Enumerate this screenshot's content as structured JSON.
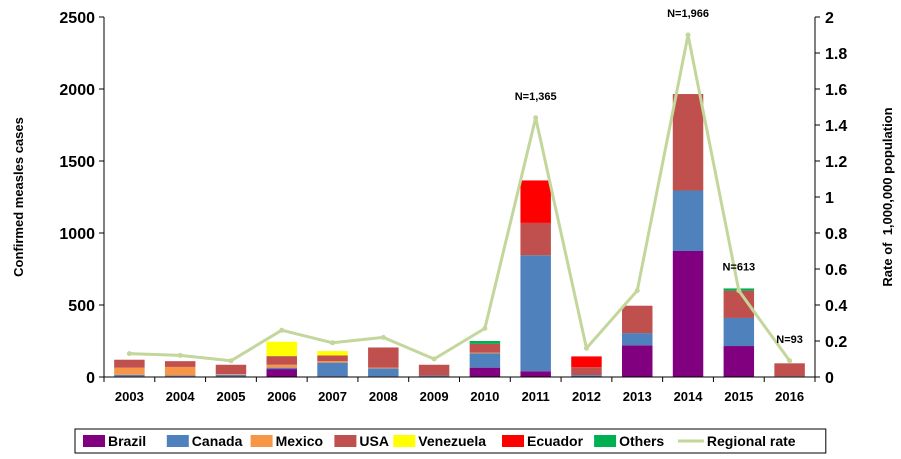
{
  "chart_data": {
    "type": "bar",
    "stacked": true,
    "categories": [
      "2003",
      "2004",
      "2005",
      "2006",
      "2007",
      "2008",
      "2009",
      "2010",
      "2011",
      "2012",
      "2013",
      "2014",
      "2015",
      "2016"
    ],
    "series": [
      {
        "name": "Brazil",
        "color": "#800080",
        "values": [
          5,
          5,
          5,
          55,
          5,
          5,
          5,
          65,
          40,
          3,
          220,
          875,
          215,
          0
        ]
      },
      {
        "name": "Canada",
        "color": "#4f81bd",
        "values": [
          10,
          5,
          10,
          10,
          95,
          55,
          5,
          100,
          805,
          10,
          85,
          420,
          195,
          5
        ]
      },
      {
        "name": "Mexico",
        "color": "#f79646",
        "values": [
          50,
          60,
          5,
          20,
          10,
          5,
          0,
          5,
          0,
          0,
          0,
          0,
          0,
          0
        ]
      },
      {
        "name": "USA",
        "color": "#c0504d",
        "values": [
          55,
          40,
          65,
          60,
          40,
          140,
          75,
          60,
          225,
          55,
          190,
          670,
          190,
          90
        ]
      },
      {
        "name": "Venezuela",
        "color": "#ffff00",
        "values": [
          0,
          0,
          0,
          100,
          30,
          0,
          0,
          0,
          0,
          0,
          0,
          0,
          0,
          0
        ]
      },
      {
        "name": "Ecuador",
        "color": "#ff0000",
        "values": [
          0,
          0,
          0,
          0,
          0,
          0,
          0,
          0,
          295,
          75,
          0,
          0,
          0,
          0
        ]
      },
      {
        "name": "Others",
        "color": "#00b050",
        "values": [
          0,
          0,
          0,
          0,
          0,
          0,
          0,
          20,
          0,
          0,
          0,
          0,
          15,
          0
        ]
      }
    ],
    "line_series": {
      "name": "Regional rate",
      "color": "#c3d69b",
      "values": [
        0.13,
        0.12,
        0.09,
        0.26,
        0.19,
        0.22,
        0.1,
        0.27,
        1.44,
        0.16,
        0.48,
        1.9,
        0.48,
        0.09
      ]
    },
    "ylabel": "Confirmed measles cases",
    "y2label": "Rate of  1,000,000 population",
    "ylim": [
      0,
      2500
    ],
    "y2lim": [
      0,
      2
    ],
    "yticks": [
      "0",
      "500",
      "1000",
      "1500",
      "2000",
      "2500"
    ],
    "y2ticks": [
      "0",
      "0.2",
      "0.4",
      "0.6",
      "0.8",
      "1",
      "1.2",
      "1.4",
      "1.6",
      "1.8",
      "2"
    ],
    "annotations": [
      {
        "category": "2011",
        "text": "N=1,365"
      },
      {
        "category": "2014",
        "text": "N=1,966"
      },
      {
        "category": "2015",
        "text": "N=613"
      },
      {
        "category": "2016",
        "text": "N=93"
      }
    ],
    "legend": "bottom",
    "grid": false
  }
}
